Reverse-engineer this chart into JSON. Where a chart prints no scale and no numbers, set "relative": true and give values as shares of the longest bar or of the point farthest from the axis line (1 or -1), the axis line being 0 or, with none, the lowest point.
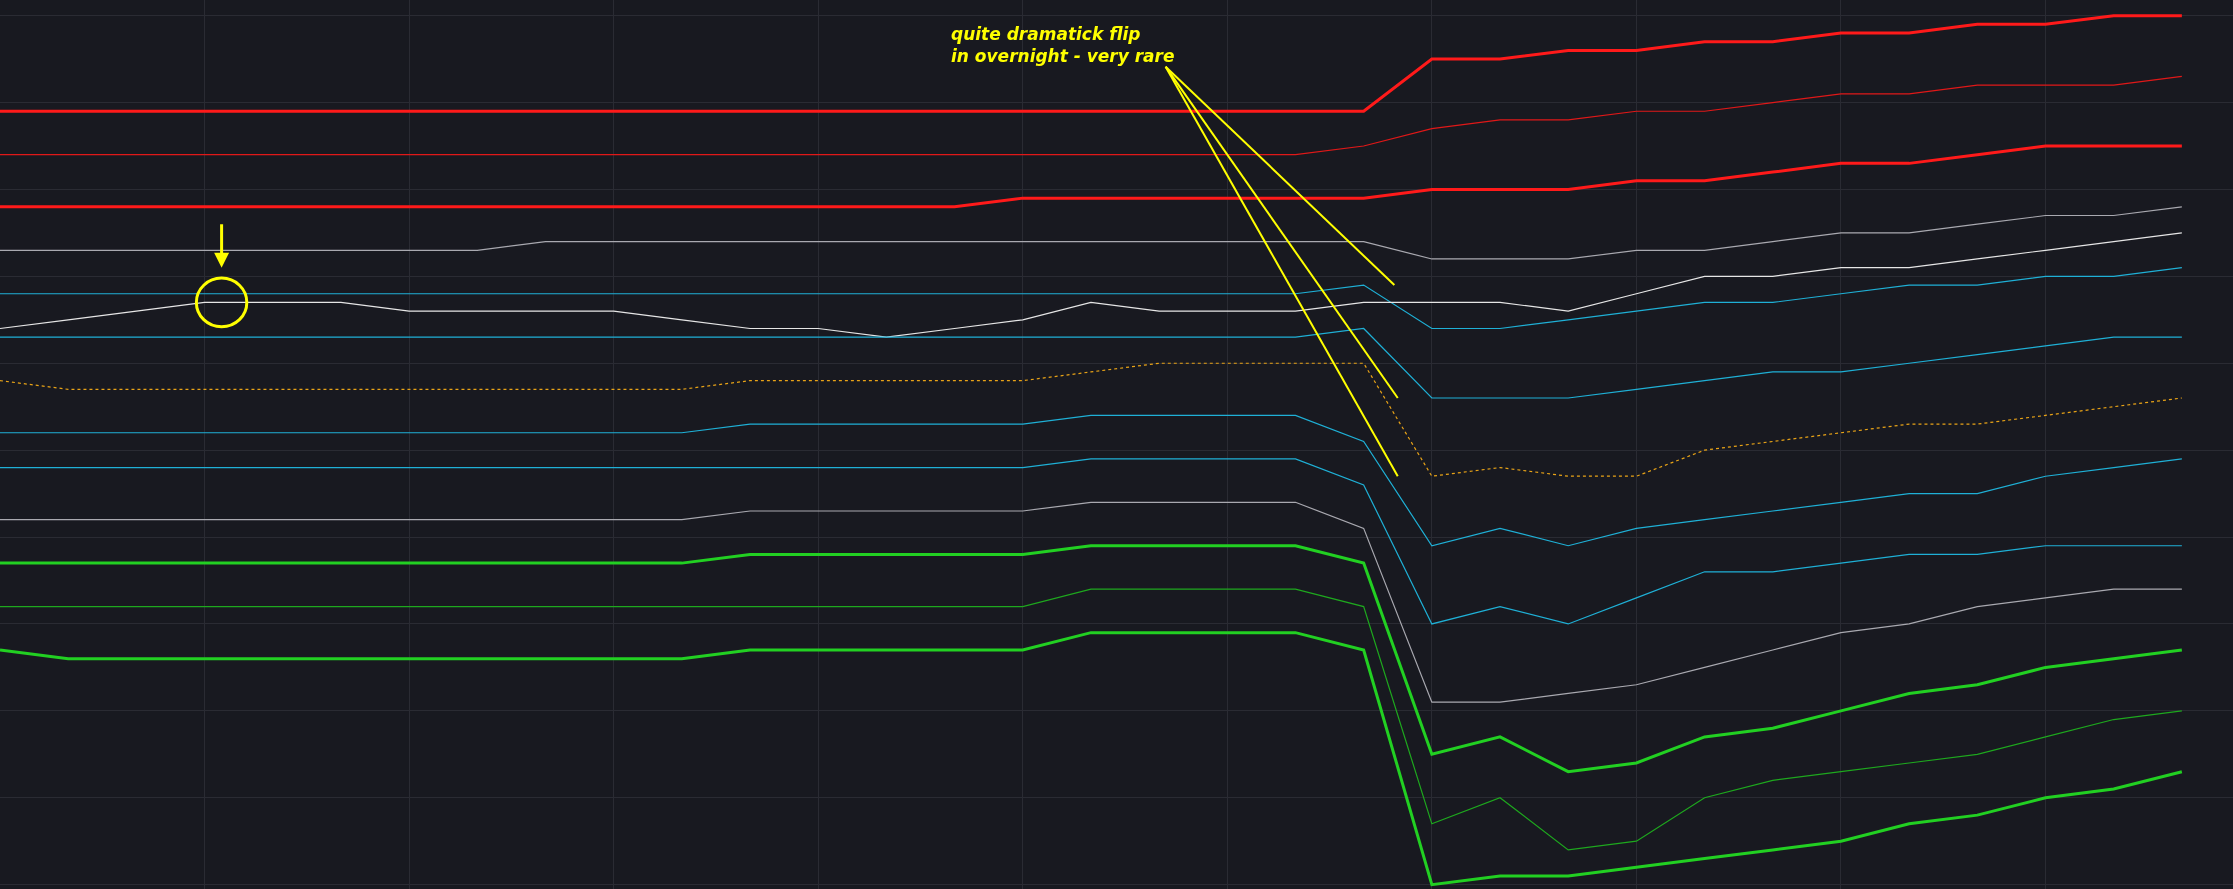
{
  "chart_data": {
    "type": "line",
    "relative": true,
    "grid": true,
    "categories": [
      null,
      null,
      null,
      null,
      null,
      null,
      null,
      null,
      null,
      null,
      null,
      null,
      null,
      null,
      null,
      null,
      null,
      null,
      null,
      null,
      null,
      null,
      null,
      null,
      null,
      null,
      null,
      null,
      null,
      null,
      null,
      null,
      null
    ],
    "annotations": [
      "quite dramatick flip\nin overnight - very rare"
    ],
    "series": [
      {
        "color": "#ff1a1a",
        "values": [
          0.89,
          0.89,
          0.89,
          0.89,
          0.89,
          0.89,
          0.89,
          0.89,
          0.89,
          0.89,
          0.89,
          0.89,
          0.89,
          0.89,
          0.89,
          0.89,
          0.89,
          0.89,
          0.89,
          0.89,
          0.89,
          0.95,
          0.95,
          0.96,
          0.96,
          0.97,
          0.97,
          0.98,
          0.98,
          0.99,
          0.99,
          1.0,
          1.0
        ]
      },
      {
        "color": "#e01818",
        "values": [
          0.84,
          0.84,
          0.84,
          0.84,
          0.84,
          0.84,
          0.84,
          0.84,
          0.84,
          0.84,
          0.84,
          0.84,
          0.84,
          0.84,
          0.84,
          0.84,
          0.84,
          0.84,
          0.84,
          0.84,
          0.85,
          0.87,
          0.88,
          0.88,
          0.89,
          0.89,
          0.9,
          0.91,
          0.91,
          0.92,
          0.92,
          0.92,
          0.93
        ]
      },
      {
        "color": "#ff1a1a",
        "values": [
          0.78,
          0.78,
          0.78,
          0.78,
          0.78,
          0.78,
          0.78,
          0.78,
          0.78,
          0.78,
          0.78,
          0.78,
          0.78,
          0.78,
          0.78,
          0.79,
          0.79,
          0.79,
          0.79,
          0.79,
          0.79,
          0.8,
          0.8,
          0.8,
          0.81,
          0.81,
          0.82,
          0.83,
          0.83,
          0.84,
          0.85,
          0.85,
          0.85
        ]
      },
      {
        "color": "#a9a9b0",
        "values": [
          0.73,
          0.73,
          0.73,
          0.73,
          0.73,
          0.73,
          0.73,
          0.73,
          0.74,
          0.74,
          0.74,
          0.74,
          0.74,
          0.74,
          0.74,
          0.74,
          0.74,
          0.74,
          0.74,
          0.74,
          0.74,
          0.72,
          0.72,
          0.72,
          0.73,
          0.73,
          0.74,
          0.75,
          0.75,
          0.76,
          0.77,
          0.77,
          0.78
        ]
      },
      {
        "color": "#1fb0d6",
        "values": [
          0.68,
          0.68,
          0.68,
          0.68,
          0.68,
          0.68,
          0.68,
          0.68,
          0.68,
          0.68,
          0.68,
          0.68,
          0.68,
          0.68,
          0.68,
          0.68,
          0.68,
          0.68,
          0.68,
          0.68,
          0.69,
          0.64,
          0.64,
          0.65,
          0.66,
          0.67,
          0.67,
          0.68,
          0.69,
          0.69,
          0.7,
          0.7,
          0.71
        ]
      },
      {
        "color": "#e6e6e6",
        "values": [
          0.64,
          0.65,
          0.66,
          0.67,
          0.67,
          0.67,
          0.66,
          0.66,
          0.66,
          0.66,
          0.65,
          0.64,
          0.64,
          0.63,
          0.64,
          0.65,
          0.67,
          0.66,
          0.66,
          0.66,
          0.67,
          0.67,
          0.67,
          0.66,
          0.68,
          0.7,
          0.7,
          0.71,
          0.71,
          0.72,
          0.73,
          0.74,
          0.75
        ]
      },
      {
        "color": "#1fb0d6",
        "values": [
          0.63,
          0.63,
          0.63,
          0.63,
          0.63,
          0.63,
          0.63,
          0.63,
          0.63,
          0.63,
          0.63,
          0.63,
          0.63,
          0.63,
          0.63,
          0.63,
          0.63,
          0.63,
          0.63,
          0.63,
          0.64,
          0.56,
          0.56,
          0.56,
          0.57,
          0.58,
          0.59,
          0.59,
          0.6,
          0.61,
          0.62,
          0.63,
          0.63
        ]
      },
      {
        "color": "#e8a317",
        "line_style": "dotted",
        "values": [
          0.58,
          0.57,
          0.57,
          0.57,
          0.57,
          0.57,
          0.57,
          0.57,
          0.57,
          0.57,
          0.57,
          0.58,
          0.58,
          0.58,
          0.58,
          0.58,
          0.59,
          0.6,
          0.6,
          0.6,
          0.6,
          0.47,
          0.48,
          0.47,
          0.47,
          0.5,
          0.51,
          0.52,
          0.53,
          0.53,
          0.54,
          0.55,
          0.56
        ]
      },
      {
        "color": "#1fb0d6",
        "values": [
          0.52,
          0.52,
          0.52,
          0.52,
          0.52,
          0.52,
          0.52,
          0.52,
          0.52,
          0.52,
          0.52,
          0.53,
          0.53,
          0.53,
          0.53,
          0.53,
          0.54,
          0.54,
          0.54,
          0.54,
          0.51,
          0.39,
          0.41,
          0.39,
          0.41,
          0.42,
          0.43,
          0.44,
          0.45,
          0.45,
          0.47,
          0.48,
          0.49
        ]
      },
      {
        "color": "#1fb0d6",
        "values": [
          0.48,
          0.48,
          0.48,
          0.48,
          0.48,
          0.48,
          0.48,
          0.48,
          0.48,
          0.48,
          0.48,
          0.48,
          0.48,
          0.48,
          0.48,
          0.48,
          0.49,
          0.49,
          0.49,
          0.49,
          0.46,
          0.3,
          0.32,
          0.3,
          0.33,
          0.36,
          0.36,
          0.37,
          0.38,
          0.38,
          0.39,
          0.39,
          0.39
        ]
      },
      {
        "color": "#a9a9b0",
        "values": [
          0.42,
          0.42,
          0.42,
          0.42,
          0.42,
          0.42,
          0.42,
          0.42,
          0.42,
          0.42,
          0.42,
          0.43,
          0.43,
          0.43,
          0.43,
          0.43,
          0.44,
          0.44,
          0.44,
          0.44,
          0.41,
          0.21,
          0.21,
          0.22,
          0.23,
          0.25,
          0.27,
          0.29,
          0.3,
          0.32,
          0.33,
          0.34,
          0.34
        ]
      },
      {
        "color": "#22d022",
        "values": [
          0.37,
          0.37,
          0.37,
          0.37,
          0.37,
          0.37,
          0.37,
          0.37,
          0.37,
          0.37,
          0.37,
          0.38,
          0.38,
          0.38,
          0.38,
          0.38,
          0.39,
          0.39,
          0.39,
          0.39,
          0.37,
          0.15,
          0.17,
          0.13,
          0.14,
          0.17,
          0.18,
          0.2,
          0.22,
          0.23,
          0.25,
          0.26,
          0.27
        ]
      },
      {
        "color": "#1ea81e",
        "values": [
          0.32,
          0.32,
          0.32,
          0.32,
          0.32,
          0.32,
          0.32,
          0.32,
          0.32,
          0.32,
          0.32,
          0.32,
          0.32,
          0.32,
          0.32,
          0.32,
          0.34,
          0.34,
          0.34,
          0.34,
          0.32,
          0.07,
          0.1,
          0.04,
          0.05,
          0.1,
          0.12,
          0.13,
          0.14,
          0.15,
          0.17,
          0.19,
          0.2
        ]
      },
      {
        "color": "#22d022",
        "values": [
          0.27,
          0.26,
          0.26,
          0.26,
          0.26,
          0.26,
          0.26,
          0.26,
          0.26,
          0.26,
          0.26,
          0.27,
          0.27,
          0.27,
          0.27,
          0.27,
          0.29,
          0.29,
          0.29,
          0.29,
          0.27,
          0.0,
          0.01,
          0.01,
          0.02,
          0.03,
          0.04,
          0.05,
          0.07,
          0.08,
          0.1,
          0.11,
          0.13
        ]
      }
    ]
  }
}
